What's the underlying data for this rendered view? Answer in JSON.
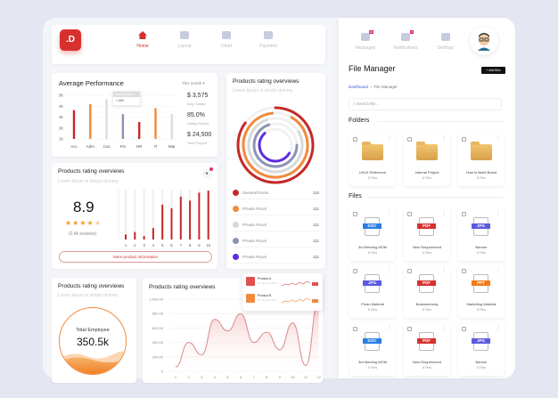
{
  "logo": {
    "text": ".D",
    "color": "#d6312f"
  },
  "nav": [
    {
      "label": "Home",
      "icon": "home-icon",
      "active": true
    },
    {
      "label": "Layout",
      "icon": "grid-icon"
    },
    {
      "label": "Chart",
      "icon": "pie-chart-icon"
    },
    {
      "label": "Payment",
      "icon": "wallet-icon"
    }
  ],
  "avg": {
    "title": "Average Performance",
    "period": "This month",
    "tooltip_title": "Data Position",
    "tooltip_value": "880",
    "stats": [
      {
        "value": "$ 3,575",
        "label": "Avg. Salary"
      },
      {
        "value": "85.0%",
        "label": "Salary Payed"
      },
      {
        "value": "$ 24,500",
        "label": "Total Payout"
      }
    ]
  },
  "chart_data": [
    {
      "type": "bar",
      "categories": [
        "Acc",
        "Adm",
        "Cus",
        "Fin",
        "HR",
        "IT",
        "Mar"
      ],
      "values": [
        3.5,
        4.1,
        4.6,
        3.1,
        2.3,
        3.7,
        3.1
      ],
      "colors": [
        "#c62828",
        "#f08a3c",
        "#dddddd",
        "#8b93b5",
        "#c62828",
        "#f08a3c",
        "#dddddd"
      ],
      "yticks": [
        "5k",
        "4k",
        "3k",
        "2k",
        "1k"
      ],
      "ylim": [
        0.6,
        5
      ]
    },
    {
      "type": "bar",
      "categories": [
        "1",
        "2",
        "3",
        "4",
        "5",
        "6",
        "7",
        "8",
        "9",
        "10"
      ],
      "values": [
        0.1,
        0.15,
        0.07,
        0.23,
        0.7,
        0.63,
        0.86,
        0.78,
        0.94,
        0.98
      ],
      "ylim": [
        0,
        1
      ]
    },
    {
      "type": "area",
      "x": [
        1,
        2,
        3,
        4,
        5,
        6,
        7,
        8,
        9,
        10,
        11,
        12
      ],
      "values": [
        60,
        400,
        230,
        720,
        560,
        800,
        400,
        540,
        300,
        670,
        80,
        1000
      ],
      "yticks": [
        "1,000.00",
        "800.00",
        "600.00",
        "400.00",
        "200.00",
        "0"
      ],
      "ylim": [
        0,
        1000
      ]
    }
  ],
  "rating": {
    "title": "Products rating overviews",
    "subtitle": "Lorem Ipsum is simply dummy",
    "score": "8.9",
    "stars": 4.5,
    "reviews": "(2.4k reviews)",
    "button": "More product information"
  },
  "rings": {
    "title": "Products rating overviews",
    "subtitle": "Lorem Ipsum is simply dummy",
    "items": [
      {
        "label": "General Room",
        "value": "110",
        "color": "#c62828"
      },
      {
        "label": "Private Room",
        "value": "111",
        "color": "#f08a3c"
      },
      {
        "label": "Private Room",
        "value": "111",
        "color": "#d9d9d9"
      },
      {
        "label": "Private Room",
        "value": "111",
        "color": "#8b93b5"
      },
      {
        "label": "Private Room",
        "value": "111",
        "color": "#5b2ee0"
      }
    ]
  },
  "employee": {
    "title": "Products rating overviews",
    "subtitle": "Lorem Ipsum is simply dummy",
    "label": "Total Employee",
    "value": "350.5k"
  },
  "line": {
    "title": "Products rating overviews",
    "products": [
      {
        "name": "Product A",
        "date": "24 Januari 2022",
        "color": "#e05050"
      },
      {
        "name": "Product B",
        "date": "24 Januari 2022",
        "color": "#f08a3c"
      }
    ]
  },
  "top": {
    "items": [
      {
        "label": "Messages",
        "badge": "15"
      },
      {
        "label": "Notifications",
        "badge": "7"
      },
      {
        "label": "Settings"
      }
    ]
  },
  "fm": {
    "title": "File Manager",
    "add": "+ Add files",
    "crumb1": "Dashboard",
    "crumb2": "File Manager",
    "search_placeholder": "Search file...",
    "folders_label": "Folders",
    "files_label": "Files",
    "folders": [
      {
        "name": "UI/UX Reference",
        "count": "8 Files"
      },
      {
        "name": "Internal Project",
        "count": "8 Files"
      },
      {
        "name": "How to Build Brand",
        "count": "8 Files"
      }
    ],
    "files": [
      {
        "type": "DOC",
        "name": "3rd Meeting MOM",
        "count": "8 Files"
      },
      {
        "type": "PDF",
        "name": "New Requirement",
        "count": "8 Files"
      },
      {
        "type": "JPG",
        "name": "Banner",
        "count": "8 Files"
      },
      {
        "type": "JPG",
        "name": "Photo Material",
        "count": "8 Files"
      },
      {
        "type": "PDF",
        "name": "Brainstorming",
        "count": "8 Files"
      },
      {
        "type": "PPT",
        "name": "Marketing Material",
        "count": "8 Files"
      },
      {
        "type": "DOC",
        "name": "3rd Meeting MOM",
        "count": "8 Files"
      },
      {
        "type": "PDF",
        "name": "New Requirement",
        "count": "8 Files"
      },
      {
        "type": "JPG",
        "name": "Banner",
        "count": "8 Files"
      }
    ]
  }
}
